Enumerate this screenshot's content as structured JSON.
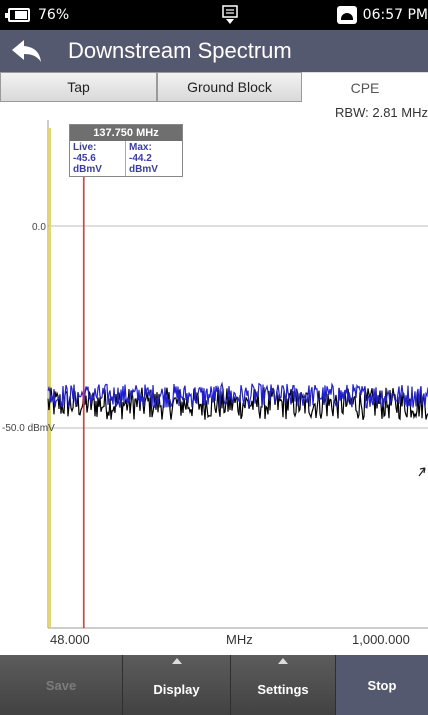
{
  "status_bar": {
    "battery": "76%",
    "time": "06:57 PM"
  },
  "header": {
    "title": "Downstream Spectrum"
  },
  "tabs": [
    {
      "label": "Tap",
      "active": false
    },
    {
      "label": "Ground Block",
      "active": false
    },
    {
      "label": "CPE",
      "active": true
    }
  ],
  "rbw": "RBW: 2.81 MHz",
  "marker": {
    "freq": "137.750 MHz",
    "live_label": "Live:",
    "live_value": "-45.6 dBmV",
    "max_label": "Max:",
    "max_value": "-44.2 dBmV"
  },
  "plot": {
    "y_labels": [
      "0.0",
      "-50.0 dBmV"
    ],
    "x_start": "48.000",
    "x_unit": "MHz",
    "x_end": "1,000.000"
  },
  "chart_data": {
    "type": "line",
    "x_range": [
      48,
      1000
    ],
    "y_ticks": [
      0,
      -50
    ],
    "series": [
      {
        "color": "#2020d0",
        "baseline": -42,
        "noise": 3
      },
      {
        "color": "#000000",
        "baseline": -44,
        "noise": 4
      }
    ],
    "marker_x": 137.75,
    "colors": {
      "marker": "#e03030",
      "limit": "#f0e020"
    }
  },
  "bottom_bar": {
    "save": "Save",
    "display": "Display",
    "settings": "Settings",
    "stop": "Stop"
  }
}
